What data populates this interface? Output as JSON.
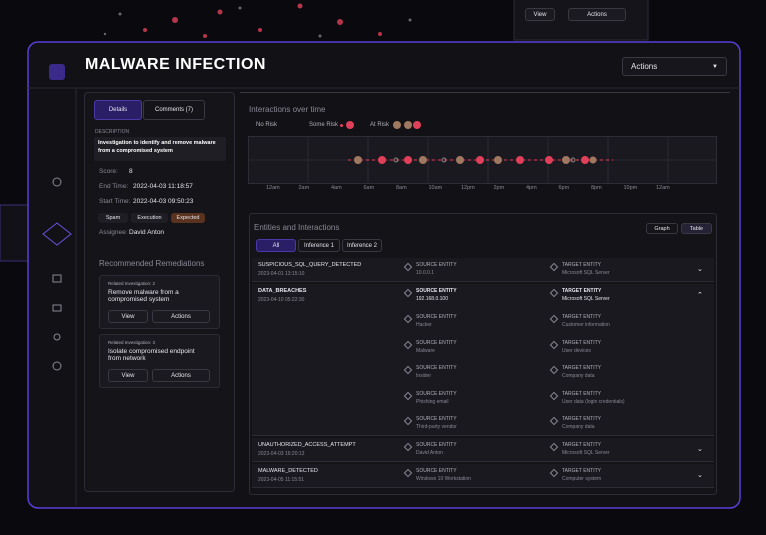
{
  "header": {
    "title": "MALWARE INFECTION",
    "actions": "Actions"
  },
  "background": {
    "view": "View",
    "actions": "Actions"
  },
  "details": {
    "tabs": [
      "Details",
      "Comments (7)"
    ],
    "description_label": "DESCRIPTION",
    "description": "Investigation to identify and remove malware from a compromised system",
    "fields": [
      {
        "label": "Score:",
        "value": "8"
      },
      {
        "label": "End Time:",
        "value": "2022-04-03 11:18:57"
      },
      {
        "label": "Start Time:",
        "value": "2022-04-03 09:50:23"
      }
    ],
    "tags": [
      "Spam",
      "Execution",
      "Expected"
    ],
    "assignee": {
      "label": "Assignee:",
      "value": "David Anton"
    }
  },
  "remediations": {
    "title": "Recommended Remediations",
    "items": [
      {
        "related": "Related Investigation: 2",
        "title": "Remove malware from a compromised system",
        "view": "View",
        "actions": "Actions"
      },
      {
        "related": "Related Investigation: 3",
        "title": "Isolate compromised endpoint from network",
        "view": "View",
        "actions": "Actions"
      }
    ]
  },
  "timeline": {
    "title": "Interactions over time",
    "legend": [
      "No Risk",
      "Some Risk",
      "At Risk"
    ],
    "labels": [
      "12am",
      "2am",
      "4am",
      "6am",
      "8am",
      "10am",
      "12pm",
      "2pm",
      "4pm",
      "6pm",
      "8pm",
      "10pm",
      "12am"
    ]
  },
  "entities": {
    "title": "Entities and Interactions",
    "views": [
      "Graph",
      "Table"
    ],
    "tabs": [
      "All",
      "Inference 1",
      "Inference 2"
    ],
    "source_label": "SOURCE ENTITY",
    "target_label": "TARGET ENTITY",
    "rows": [
      {
        "event": "SUSPICIOUS_SQL_QUERY_DETECTED",
        "time": "2023-04-01 13:15:10",
        "source": "10.0.0.1",
        "target": "Microsoft SQL Server",
        "details": []
      },
      {
        "event": "DATA_BREACHES",
        "time": "2023-04-10 05:22:30",
        "source": "192.168.0.100",
        "target": "Microsoft SQL Server",
        "details": [
          {
            "source": "Hacker",
            "target": "Customer information"
          },
          {
            "source": "Malware",
            "target": "User devices"
          },
          {
            "source": "Insider",
            "target": "Company data"
          },
          {
            "source": "Phishing email",
            "target": "User data (login credentials)"
          },
          {
            "source": "Third-party vendor",
            "target": "Company data"
          }
        ]
      },
      {
        "event": "UNAUTHORIZED_ACCESS_ATTEMPT",
        "time": "2023-04-03 16:20:13",
        "source": "David Anton",
        "target": "Microsoft SQL Server",
        "details": []
      },
      {
        "event": "MALWARE_DETECTED",
        "time": "2023-04-05 11:15:51",
        "source": "Windows 10 Workstation",
        "target": "Computer system",
        "details": []
      }
    ]
  }
}
